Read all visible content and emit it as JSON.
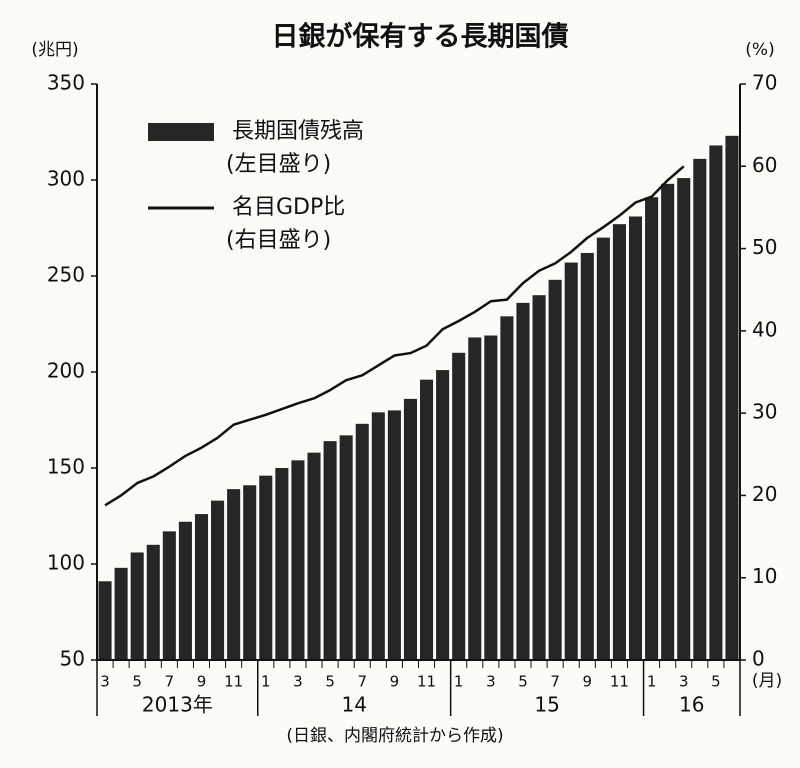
{
  "chart_data": {
    "type": "bar_line",
    "title": "日銀が保有する長期国債",
    "y_unit": "(兆円)",
    "y2_unit": "(%)",
    "x_unit": "(月)",
    "source": "(日銀、内閣府統計から作成)",
    "categories": [
      "3",
      null,
      "5",
      null,
      "7",
      null,
      "9",
      null,
      "11",
      null,
      "1",
      null,
      "3",
      null,
      "5",
      null,
      "7",
      null,
      "9",
      null,
      "11",
      null,
      "1",
      null,
      "3",
      null,
      "5",
      null,
      "7",
      null,
      "9",
      null,
      "11",
      null,
      "1",
      null,
      "3",
      null,
      "5",
      null
    ],
    "years": [
      "2013年",
      "14",
      "15",
      "16"
    ],
    "series": [
      {
        "name": "長期国債残高",
        "axis_note": "(左目盛り)",
        "color": "#262626",
        "kind": "bar",
        "values": [
          91,
          98,
          106,
          110,
          117,
          122,
          126,
          133,
          139,
          141,
          146,
          150,
          154,
          158,
          164,
          167,
          173,
          179,
          180,
          186,
          196,
          201,
          210,
          218,
          219,
          229,
          236,
          240,
          248,
          257,
          262,
          270,
          277,
          281,
          291,
          298,
          301,
          311,
          318,
          323
        ]
      },
      {
        "name": "名目GDP比",
        "axis_note": "(右目盛り)",
        "color": "#111111",
        "kind": "line",
        "axis": "y2",
        "values": [
          18.8,
          20.0,
          21.5,
          22.3,
          23.5,
          24.8,
          25.8,
          27.0,
          28.6,
          29.2,
          29.8,
          30.5,
          31.2,
          31.8,
          32.8,
          34.0,
          34.6,
          35.8,
          37.0,
          37.3,
          38.2,
          40.2,
          41.2,
          42.3,
          43.6,
          43.8,
          45.8,
          47.3,
          48.2,
          49.6,
          51.3,
          52.6,
          54.0,
          55.6,
          56.3,
          58.3,
          60.0,
          null,
          null,
          null
        ]
      }
    ],
    "ylim": [
      50,
      350
    ],
    "yticks": [
      50,
      100,
      150,
      200,
      250,
      300,
      350
    ],
    "y2lim": [
      0,
      70
    ],
    "y2ticks": [
      0,
      10,
      20,
      30,
      40,
      50,
      60,
      70
    ]
  }
}
